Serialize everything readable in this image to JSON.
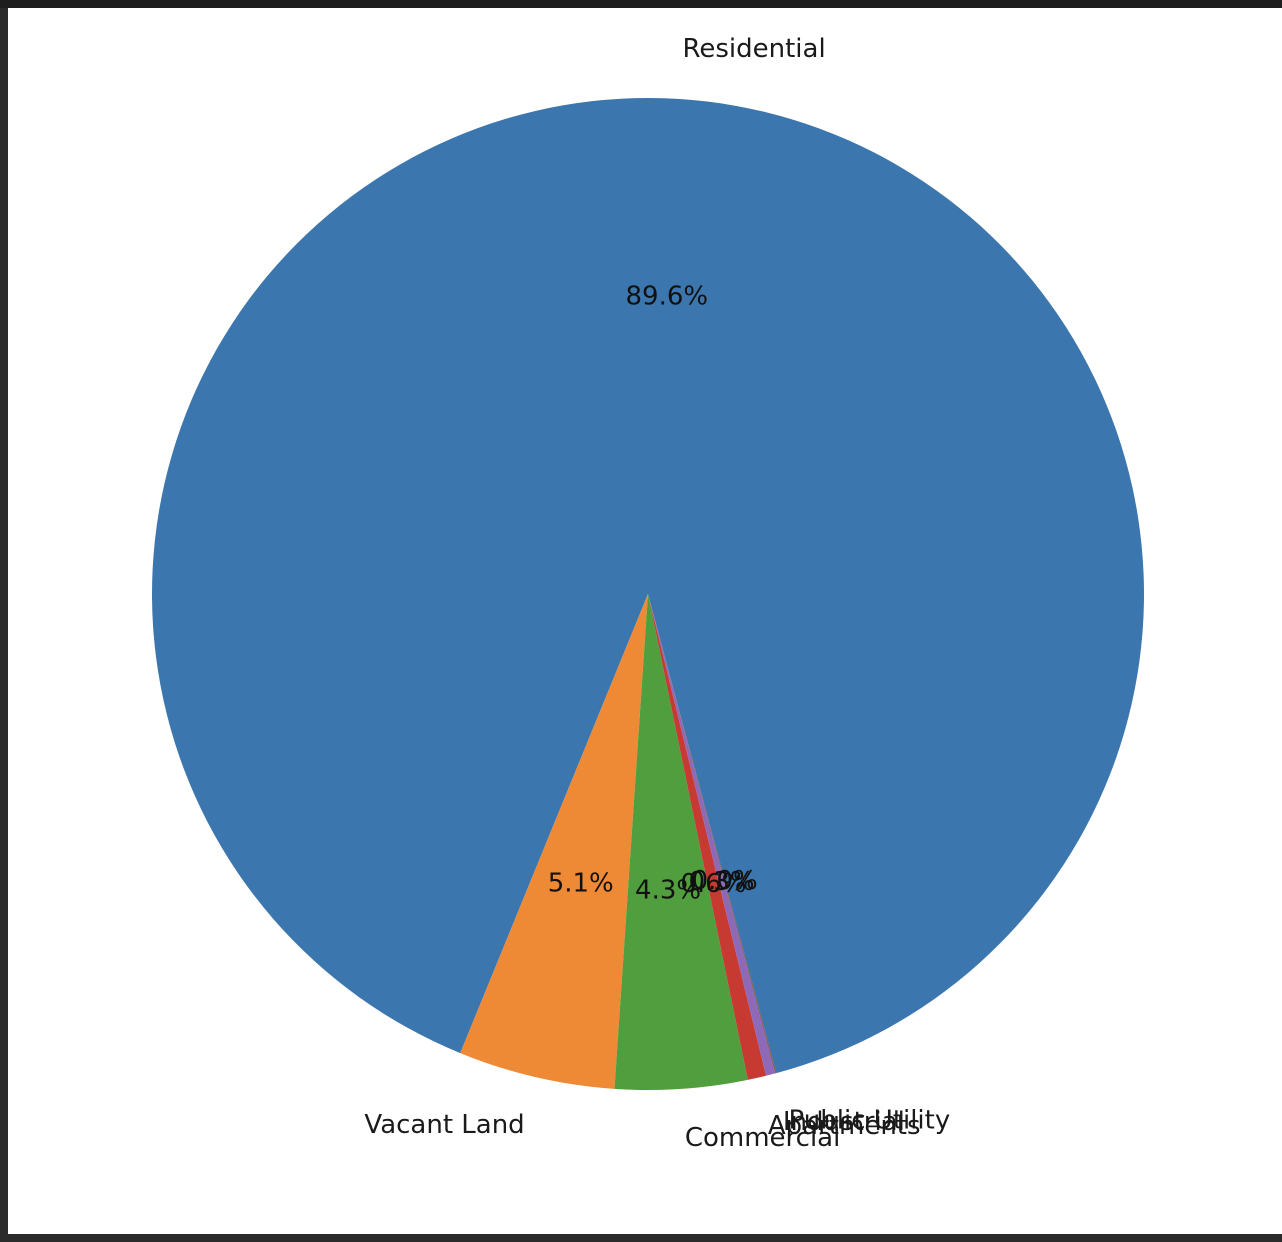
{
  "chart_data": {
    "type": "pie",
    "title": "",
    "slices": [
      {
        "label": "Residential",
        "pct_label": "89.6%",
        "value": 89.6,
        "color": "#3c76ae"
      },
      {
        "label": "Vacant Land",
        "pct_label": "5.1%",
        "value": 5.1,
        "color": "#ee8a35"
      },
      {
        "label": "Commercial",
        "pct_label": "4.3%",
        "value": 4.3,
        "color": "#519e3e"
      },
      {
        "label": "Apartments",
        "pct_label": "0.6%",
        "value": 0.6,
        "color": "#c63a32"
      },
      {
        "label": "Industrial",
        "pct_label": "0.3%",
        "value": 0.3,
        "color": "#8d69b8"
      },
      {
        "label": "Public Utility",
        "pct_label": "0.0%",
        "value": 0.04,
        "color": "#84584e"
      }
    ],
    "start_angle_deg": 285,
    "direction": "counterclockwise"
  }
}
